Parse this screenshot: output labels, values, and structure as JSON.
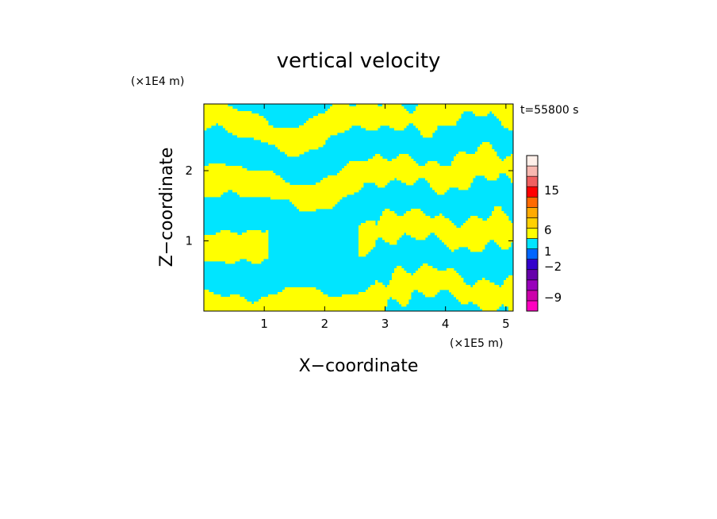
{
  "chart_data": {
    "type": "heatmap",
    "title": "vertical velocity",
    "xlabel": "X−coordinate",
    "ylabel": "Z−coordinate",
    "x_unit": "(×1E5 m)",
    "y_unit": "(×1E4 m)",
    "time_label": "t=55800 s",
    "xlim": [
      0,
      5.12
    ],
    "ylim": [
      0,
      2.95
    ],
    "x_ticks": [
      "1",
      "2",
      "3",
      "4",
      "5"
    ],
    "y_ticks": [
      "1",
      "2"
    ],
    "colorbar": {
      "levels": [
        {
          "color": "#ff00c0"
        },
        {
          "color": "#cc00aa"
        },
        {
          "color": "#9900bb"
        },
        {
          "color": "#6600aa"
        },
        {
          "color": "#3300cc"
        },
        {
          "color": "#0066ff"
        },
        {
          "color": "#00e5ff"
        },
        {
          "color": "#ffff00"
        },
        {
          "color": "#ffd000"
        },
        {
          "color": "#ffaa00"
        },
        {
          "color": "#ff6a00"
        },
        {
          "color": "#ff0000"
        },
        {
          "color": "#f06060"
        },
        {
          "color": "#f8b8b0"
        },
        {
          "color": "#fff0ea"
        }
      ],
      "tick_labels": [
        "15",
        "6",
        "1",
        "−2",
        "−9"
      ]
    }
  }
}
